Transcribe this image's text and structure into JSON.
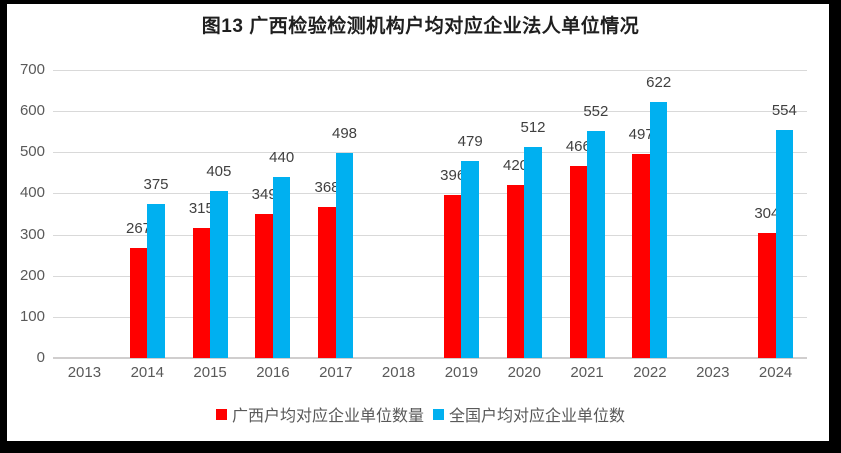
{
  "chart_data": {
    "type": "bar",
    "title": "图13 广西检验检测机构户均对应企业法人单位情况",
    "categories": [
      "2013",
      "2014",
      "2015",
      "2016",
      "2017",
      "2018",
      "2019",
      "2020",
      "2021",
      "2022",
      "2023",
      "2024"
    ],
    "series": [
      {
        "name": "广西户均对应企业单位数量",
        "color": "#FF0000",
        "values": [
          null,
          267,
          315,
          349,
          368,
          null,
          396,
          420,
          466,
          497,
          null,
          304
        ]
      },
      {
        "name": "全国户均对应企业单位数",
        "color": "#00B0F0",
        "values": [
          null,
          375,
          405,
          440,
          498,
          null,
          479,
          512,
          552,
          622,
          null,
          554
        ]
      }
    ],
    "ylim": [
      0,
      700
    ],
    "ytick_step": 100,
    "grid": true,
    "data_labels": true,
    "legend_position": "bottom"
  },
  "styles": {
    "title_color": "#1f1f1f",
    "grid_color": "#D9D9D9",
    "axis_line_color": "#D0CECE",
    "tick_label_color": "#595959",
    "data_label_color": "#404040",
    "legend_text_color": "#595959",
    "frame_color": "#000000",
    "background": "#FFFFFF"
  }
}
